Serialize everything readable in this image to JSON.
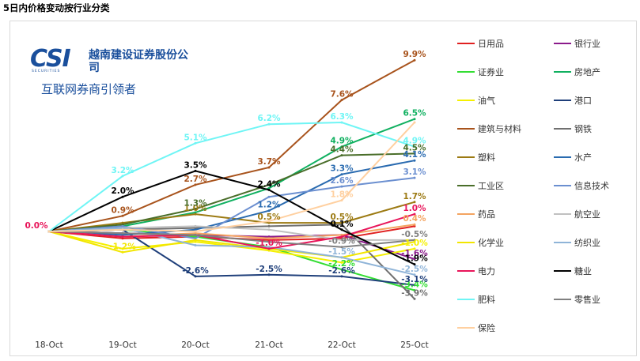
{
  "title": "5日内价格变动按行业分类",
  "logo": {
    "mark": "CSI",
    "sub": "SECURITIES",
    "name": "越南建设证券股份公司",
    "slogan": "互联网券商引领者"
  },
  "chart_data": {
    "type": "line",
    "title": "5日内价格变动按行业分类",
    "categories": [
      "18-Oct",
      "19-Oct",
      "20-Oct",
      "21-Oct",
      "22-Oct",
      "25-Oct"
    ],
    "ylim": [
      -5,
      11
    ],
    "legend_position": "right",
    "series": [
      {
        "name": "日用品",
        "color": "#e02020",
        "values": [
          0.0,
          -0.4,
          -0.3,
          -0.5,
          -0.4,
          0.3
        ],
        "labels": [
          null,
          null,
          null,
          null,
          null,
          null
        ]
      },
      {
        "name": "银行业",
        "color": "#8b1a8b",
        "values": [
          0.0,
          -0.1,
          -0.2,
          -0.3,
          -0.2,
          -1.6
        ],
        "labels": [
          null,
          null,
          null,
          null,
          null,
          "-1.6%"
        ]
      },
      {
        "name": "证券业",
        "color": "#33dd33",
        "values": [
          0.0,
          0.1,
          -0.3,
          -0.9,
          -2.2,
          -3.4
        ],
        "labels": [
          null,
          null,
          null,
          null,
          "-2.2%",
          "-3.4%"
        ]
      },
      {
        "name": "房地产",
        "color": "#10b060",
        "values": [
          0.0,
          0.3,
          1.1,
          2.5,
          4.9,
          6.5
        ],
        "labels": [
          null,
          null,
          null,
          null,
          "4.9%",
          "6.5%"
        ]
      },
      {
        "name": "油气",
        "color": "#f5f000",
        "values": [
          0.0,
          -1.0,
          -0.6,
          -1.1,
          -1.8,
          -1.0
        ],
        "labels": [
          null,
          null,
          null,
          null,
          null,
          "-1.0%"
        ]
      },
      {
        "name": "港口",
        "color": "#1f3f7a",
        "values": [
          0.0,
          0.1,
          -2.6,
          -2.5,
          -2.6,
          -3.1
        ],
        "labels": [
          null,
          null,
          "-2.6%",
          "-2.5%",
          "-2.6%",
          "-3.1%"
        ]
      },
      {
        "name": "建筑与材料",
        "color": "#a8531c",
        "values": [
          0.0,
          0.9,
          2.7,
          3.7,
          7.6,
          9.9
        ],
        "labels": [
          null,
          "0.9%",
          "2.7%",
          "3.7%",
          "7.6%",
          "9.9%"
        ]
      },
      {
        "name": "钢铁",
        "color": "#707070",
        "values": [
          0.0,
          0.1,
          0.2,
          0.3,
          0.4,
          -3.9
        ],
        "labels": [
          null,
          null,
          null,
          null,
          null,
          "-3.9%"
        ]
      },
      {
        "name": "塑料",
        "color": "#9c7a12",
        "values": [
          0.0,
          0.5,
          1.0,
          0.5,
          0.5,
          1.7
        ],
        "labels": [
          null,
          null,
          "1.0%",
          "0.5%",
          "0.5%",
          "1.7%"
        ]
      },
      {
        "name": "水产",
        "color": "#2a6bb0",
        "values": [
          0.0,
          -0.2,
          0.1,
          1.2,
          3.3,
          4.1
        ],
        "labels": [
          null,
          null,
          null,
          "1.2%",
          "3.3%",
          "4.1%"
        ]
      },
      {
        "name": "工业区",
        "color": "#4a6e2a",
        "values": [
          0.0,
          0.4,
          1.3,
          2.7,
          4.4,
          4.5
        ],
        "labels": [
          null,
          null,
          "1.3%",
          null,
          "4.4%",
          "4.5%"
        ]
      },
      {
        "name": "信息技术",
        "color": "#6b8fd0",
        "values": [
          0.0,
          0.3,
          -0.4,
          2.0,
          2.6,
          3.1
        ],
        "labels": [
          null,
          null,
          null,
          null,
          "2.6%",
          "3.1%"
        ]
      },
      {
        "name": "药品",
        "color": "#f4a460",
        "values": [
          0.0,
          -0.3,
          -0.1,
          -0.4,
          -0.2,
          0.4
        ],
        "labels": [
          null,
          null,
          null,
          null,
          null,
          "0.4%"
        ]
      },
      {
        "name": "航空业",
        "color": "#c0c0c0",
        "values": [
          0.0,
          0.2,
          0.3,
          0.1,
          -0.5,
          -0.5
        ],
        "labels": [
          null,
          null,
          null,
          null,
          null,
          null
        ]
      },
      {
        "name": "化学业",
        "color": "#f2e600",
        "values": [
          0.0,
          -1.2,
          -0.5,
          -1.0,
          -1.5,
          -0.6
        ],
        "labels": [
          null,
          "-1.2%",
          null,
          null,
          null,
          null
        ]
      },
      {
        "name": "纺织业",
        "color": "#8fb4d8",
        "values": [
          0.0,
          0.2,
          -0.8,
          -0.9,
          -1.5,
          -2.5
        ],
        "labels": [
          null,
          null,
          null,
          null,
          "-1.5%",
          "-2.5%"
        ]
      },
      {
        "name": "电力",
        "color": "#e8155a",
        "values": [
          0.0,
          -0.3,
          -0.2,
          -1.0,
          -0.3,
          1.0
        ],
        "labels": [
          "0.0%",
          null,
          null,
          "-1.0%",
          null,
          "1.0%"
        ]
      },
      {
        "name": "糖业",
        "color": "#000000",
        "values": [
          0.0,
          2.0,
          3.5,
          2.4,
          0.1,
          -1.9
        ],
        "labels": [
          null,
          "2.0%",
          "3.5%",
          "2.4%",
          "0.1%",
          "-1.9%"
        ]
      },
      {
        "name": "肥料",
        "color": "#6ff5f5",
        "values": [
          0.0,
          3.2,
          5.1,
          6.2,
          6.3,
          4.9
        ],
        "labels": [
          null,
          "3.2%",
          "5.1%",
          "6.2%",
          "6.3%",
          "4.9%"
        ]
      },
      {
        "name": "零售业",
        "color": "#808080",
        "values": [
          0.0,
          -0.1,
          -0.2,
          -0.6,
          -0.9,
          -0.5
        ],
        "labels": [
          null,
          null,
          null,
          null,
          "-0.9%",
          "-0.5%"
        ]
      },
      {
        "name": "保险",
        "color": "#ffd0a0",
        "values": [
          0.0,
          0.1,
          0.0,
          0.6,
          1.8,
          6.3
        ],
        "labels": [
          null,
          null,
          null,
          null,
          "1.8%",
          null
        ]
      }
    ]
  }
}
